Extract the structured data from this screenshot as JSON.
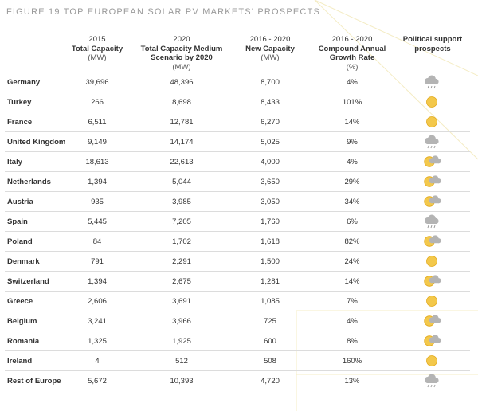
{
  "figure": {
    "title": "FIGURE 19 TOP EUROPEAN SOLAR PV MARKETS' PROSPECTS"
  },
  "columns": [
    {
      "top": "",
      "bold": "",
      "unit": ""
    },
    {
      "top": "2015",
      "bold": "Total Capacity",
      "unit": "(MW)"
    },
    {
      "top": "2020",
      "bold": "Total Capacity Medium Scenario by 2020",
      "unit": "(MW)"
    },
    {
      "top": "2016 - 2020",
      "bold": "New Capacity",
      "unit": "(MW)"
    },
    {
      "top": "2016 - 2020",
      "bold": "Compound Annual Growth Rate",
      "unit": "(%)"
    },
    {
      "top": "",
      "bold": "Political support prospects",
      "unit": ""
    }
  ],
  "colors": {
    "sun": "#f3c84b",
    "sun_edge": "#e2a91c",
    "cloud": "#b4b4b4",
    "rain": "#9a9a9a",
    "rule": "#dcdcdc"
  },
  "rows": [
    {
      "country": "Germany",
      "cap2015": "39,696",
      "cap2020": "48,396",
      "new": "8,700",
      "cagr": "4%",
      "icon": "cloud-rain-icon"
    },
    {
      "country": "Turkey",
      "cap2015": "266",
      "cap2020": "8,698",
      "new": "8,433",
      "cagr": "101%",
      "icon": "sun-icon"
    },
    {
      "country": "France",
      "cap2015": "6,511",
      "cap2020": "12,781",
      "new": "6,270",
      "cagr": "14%",
      "icon": "sun-icon"
    },
    {
      "country": "United Kingdom",
      "cap2015": "9,149",
      "cap2020": "14,174",
      "new": "5,025",
      "cagr": "9%",
      "icon": "cloud-rain-icon"
    },
    {
      "country": "Italy",
      "cap2015": "18,613",
      "cap2020": "22,613",
      "new": "4,000",
      "cagr": "4%",
      "icon": "sun-cloud-icon"
    },
    {
      "country": "Netherlands",
      "cap2015": "1,394",
      "cap2020": "5,044",
      "new": "3,650",
      "cagr": "29%",
      "icon": "sun-cloud-icon"
    },
    {
      "country": "Austria",
      "cap2015": "935",
      "cap2020": "3,985",
      "new": "3,050",
      "cagr": "34%",
      "icon": "sun-cloud-icon"
    },
    {
      "country": "Spain",
      "cap2015": "5,445",
      "cap2020": "7,205",
      "new": "1,760",
      "cagr": "6%",
      "icon": "cloud-rain-icon"
    },
    {
      "country": "Poland",
      "cap2015": "84",
      "cap2020": "1,702",
      "new": "1,618",
      "cagr": "82%",
      "icon": "sun-cloud-icon"
    },
    {
      "country": "Denmark",
      "cap2015": "791",
      "cap2020": "2,291",
      "new": "1,500",
      "cagr": "24%",
      "icon": "sun-icon"
    },
    {
      "country": "Switzerland",
      "cap2015": "1,394",
      "cap2020": "2,675",
      "new": "1,281",
      "cagr": "14%",
      "icon": "sun-cloud-icon"
    },
    {
      "country": "Greece",
      "cap2015": "2,606",
      "cap2020": "3,691",
      "new": "1,085",
      "cagr": "7%",
      "icon": "sun-icon"
    },
    {
      "country": "Belgium",
      "cap2015": "3,241",
      "cap2020": "3,966",
      "new": "725",
      "cagr": "4%",
      "icon": "sun-cloud-icon"
    },
    {
      "country": "Romania",
      "cap2015": "1,325",
      "cap2020": "1,925",
      "new": "600",
      "cagr": "8%",
      "icon": "sun-cloud-icon"
    },
    {
      "country": "Ireland",
      "cap2015": "4",
      "cap2020": "512",
      "new": "508",
      "cagr": "160%",
      "icon": "sun-icon"
    },
    {
      "country": "Rest of Europe",
      "cap2015": "5,672",
      "cap2020": "10,393",
      "new": "4,720",
      "cagr": "13%",
      "icon": "cloud-rain-icon"
    }
  ]
}
